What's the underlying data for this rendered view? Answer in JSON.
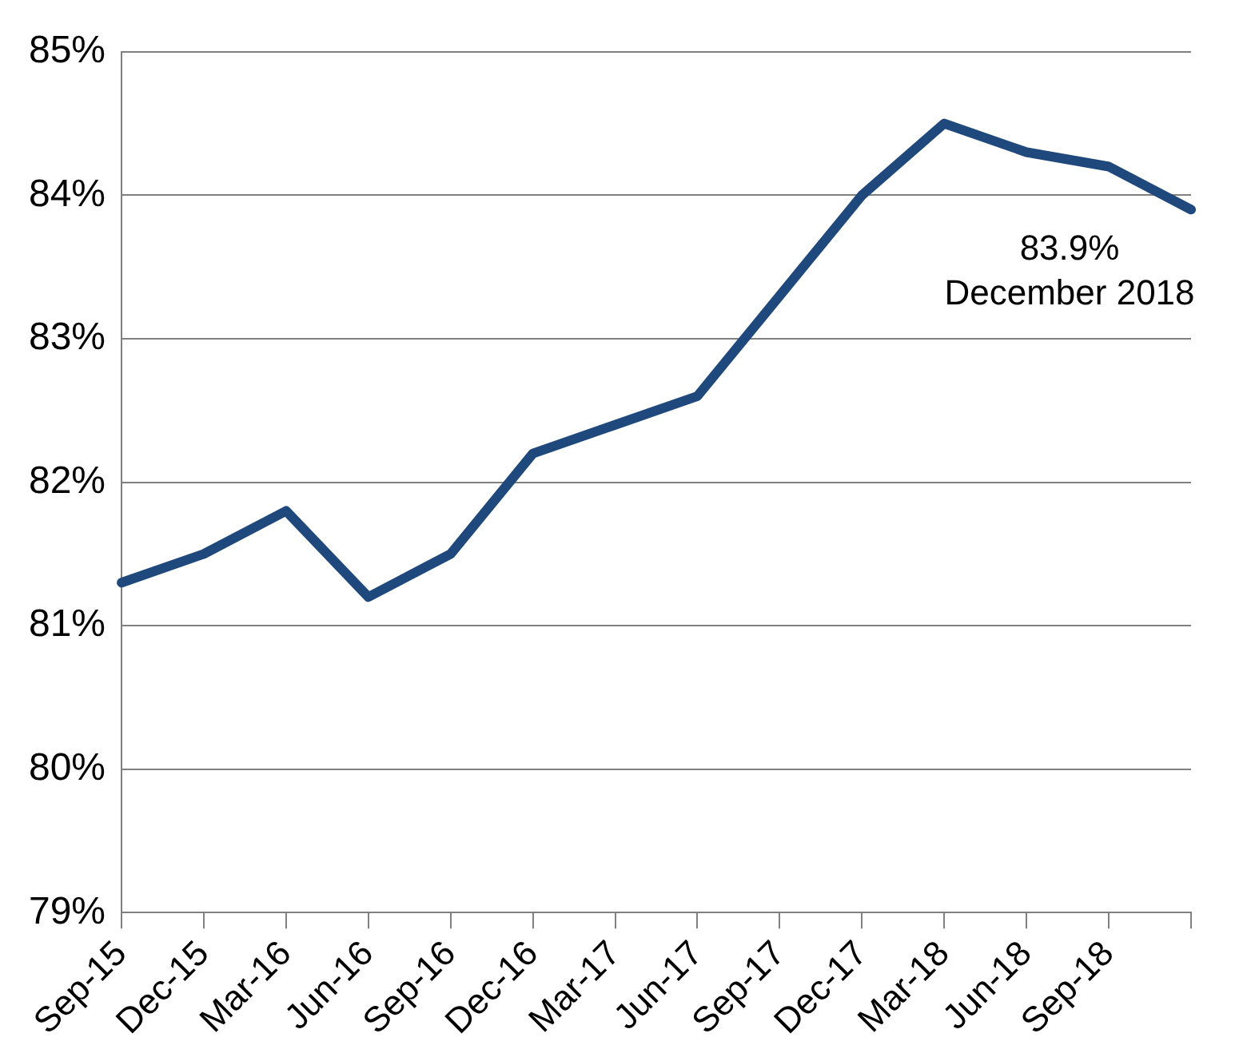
{
  "chart_data": {
    "type": "line",
    "categories": [
      "Sep-15",
      "Dec-15",
      "Mar-16",
      "Jun-16",
      "Sep-16",
      "Dec-16",
      "Mar-17",
      "Jun-17",
      "Sep-17",
      "Dec-17",
      "Mar-18",
      "Jun-18",
      "Sep-18",
      null
    ],
    "series": [
      {
        "color": "#1f497d",
        "values": [
          81.3,
          81.5,
          81.8,
          81.2,
          81.5,
          82.2,
          82.4,
          82.6,
          83.3,
          84.0,
          84.5,
          84.3,
          84.2,
          83.9
        ]
      }
    ],
    "ylim": [
      79,
      85
    ],
    "yticks": [
      {
        "value": 79,
        "label": "79%"
      },
      {
        "value": 80,
        "label": "80%"
      },
      {
        "value": 81,
        "label": "81%"
      },
      {
        "value": 82,
        "label": "82%"
      },
      {
        "value": 83,
        "label": "83%"
      },
      {
        "value": 84,
        "label": "84%"
      },
      {
        "value": 85,
        "label": "85%"
      }
    ],
    "grid": "y",
    "legend": false,
    "marker": "none",
    "line_style": "solid",
    "annotations": [
      "83.9%\nDecember 2018"
    ]
  }
}
